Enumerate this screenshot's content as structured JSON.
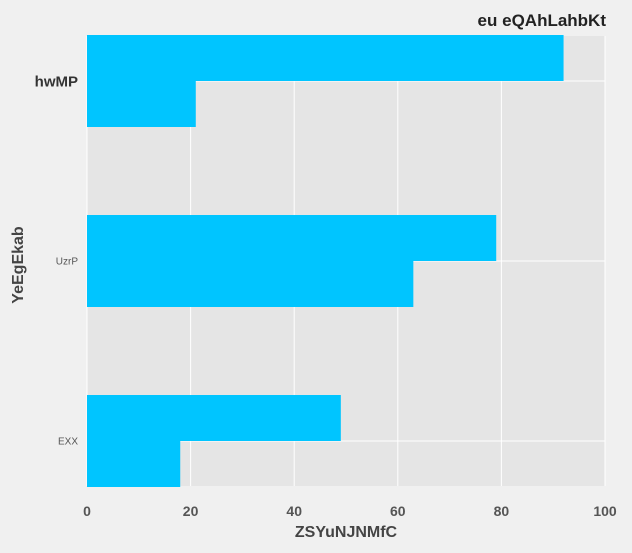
{
  "chart_data": {
    "type": "bar",
    "orientation": "horizontal",
    "title": "eu eQAhLahbKt",
    "xlabel": "ZSYuNJNMfC",
    "ylabel": "YeEgEkab",
    "categories": [
      "hwMP",
      "UzrP",
      "EXX"
    ],
    "series": [
      {
        "values": [
          92,
          79,
          49
        ]
      },
      {
        "values": [
          21,
          63,
          18
        ]
      }
    ],
    "xlim": [
      0,
      100
    ],
    "xticks": [
      0,
      20,
      40,
      60,
      80,
      100
    ],
    "grid": true,
    "legend": "none",
    "colors": {
      "background": "#f0f0f0",
      "plot_background": "#e5e5e5",
      "grid": "#ffffff",
      "bar": "#00c5ff"
    }
  }
}
